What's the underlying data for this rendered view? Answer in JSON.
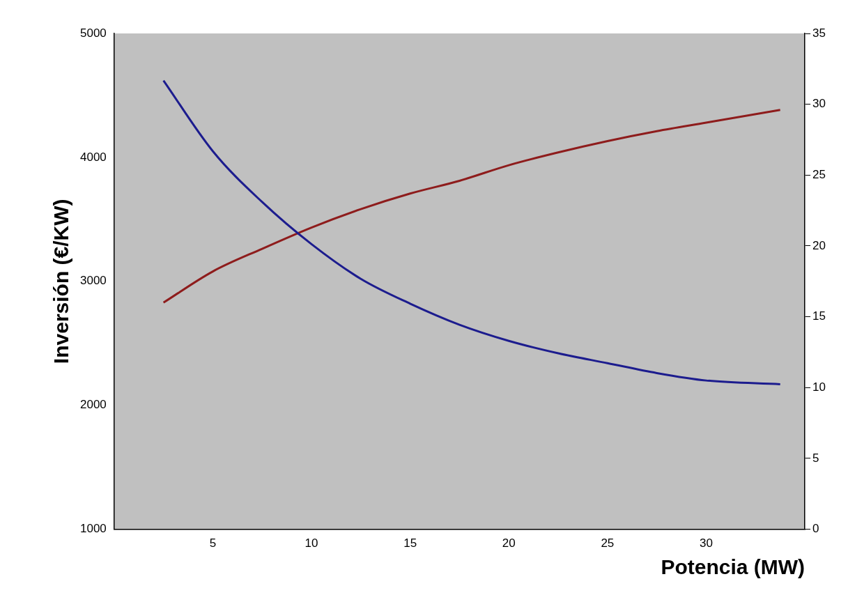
{
  "chart_data": {
    "type": "line",
    "xlabel": "Potencia (MW)",
    "ylabel": "Inversión (€/KW)",
    "x": [
      2.5,
      5,
      7.5,
      10,
      12.5,
      15,
      17.5,
      20,
      22.5,
      25,
      27.5,
      30,
      33.75
    ],
    "series": [
      {
        "color": "#1c1c8e",
        "values": [
          4620,
          4050,
          3640,
          3300,
          3020,
          2820,
          2650,
          2520,
          2420,
          2340,
          2260,
          2200,
          2170
        ]
      },
      {
        "color": "#8e1c1c",
        "axis": "y2",
        "values": [
          16.0,
          18.2,
          19.8,
          21.3,
          22.6,
          23.7,
          24.6,
          25.7,
          26.6,
          27.4,
          28.1,
          28.7,
          29.6
        ]
      }
    ],
    "xlim": [
      0,
      35
    ],
    "xticks": [
      5,
      10,
      15,
      20,
      25,
      30
    ],
    "ylim": [
      1000,
      5000
    ],
    "yticks": [
      1000,
      2000,
      3000,
      4000,
      5000
    ],
    "y2lim": [
      0,
      35
    ],
    "y2ticks": [
      0,
      5,
      10,
      15,
      20,
      25,
      30,
      35
    ],
    "grid": false,
    "legend": false,
    "marker": "none",
    "line_style": "solid"
  }
}
